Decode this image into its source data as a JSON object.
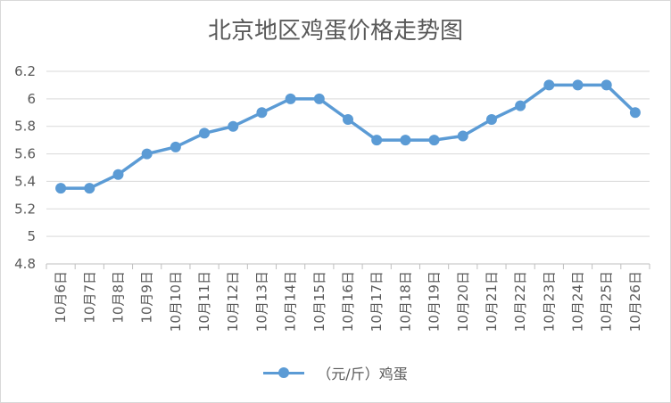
{
  "chart_data": {
    "type": "line",
    "title": "北京地区鸡蛋价格走势图",
    "categories": [
      "10月6日",
      "10月7日",
      "10月8日",
      "10月9日",
      "10月10日",
      "10月11日",
      "10月12日",
      "10月13日",
      "10月14日",
      "10月15日",
      "10月16日",
      "10月17日",
      "10月18日",
      "10月19日",
      "10月20日",
      "10月21日",
      "10月22日",
      "10月23日",
      "10月24日",
      "10月25日",
      "10月26日"
    ],
    "series": [
      {
        "name": "（元/斤）鸡蛋",
        "values": [
          5.35,
          5.35,
          5.45,
          5.6,
          5.65,
          5.75,
          5.8,
          5.9,
          6.0,
          6.0,
          5.85,
          5.7,
          5.7,
          5.7,
          5.73,
          5.85,
          5.95,
          6.1,
          6.1,
          6.1,
          5.9
        ],
        "color": "#5b9bd5"
      }
    ],
    "ylim": [
      4.8,
      6.2
    ],
    "yticks": [
      "4.8",
      "5",
      "5.2",
      "5.4",
      "5.6",
      "5.8",
      "6",
      "6.2"
    ],
    "grid": true,
    "legend_position": "bottom"
  }
}
